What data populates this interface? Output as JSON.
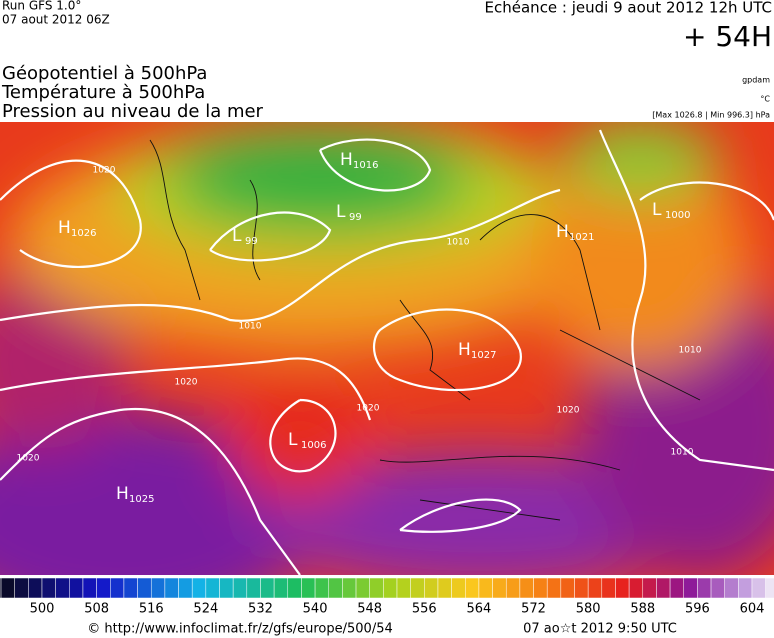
{
  "header": {
    "run": "Run GFS 1.0°",
    "run_time": "07 aout 2012 06Z",
    "echeance": "Echéance : jeudi 9 aout 2012 12h UTC",
    "lead": "+ 54H"
  },
  "titles": [
    "Géopotentiel à 500hPa",
    "Température à 500hPa",
    "Pression au niveau de la mer"
  ],
  "units": {
    "geopotential": "gpdam",
    "temperature": "°C",
    "pressure": "[Max 1026.8 | Min 996.3] hPa"
  },
  "map": {
    "centers": [
      {
        "kind": "H",
        "value": "1026"
      },
      {
        "kind": "L",
        "value": "99"
      },
      {
        "kind": "H",
        "value": "1016"
      },
      {
        "kind": "L",
        "value": "99"
      },
      {
        "kind": "H",
        "value": "1021"
      },
      {
        "kind": "L",
        "value": "1000"
      },
      {
        "kind": "H",
        "value": "1027"
      },
      {
        "kind": "L",
        "value": "1006"
      },
      {
        "kind": "H",
        "value": "1025"
      }
    ],
    "isobar_labels": [
      "1020",
      "1010",
      "1010",
      "1020",
      "1020",
      "1020",
      "1010",
      "1010",
      "1020"
    ]
  },
  "scale": {
    "ticks": [
      500,
      508,
      516,
      524,
      532,
      540,
      548,
      556,
      564,
      572,
      580,
      588,
      596,
      604
    ]
  },
  "footer": {
    "source": "© http://www.infoclimat.fr/z/gfs/europe/500/54",
    "generated": "07 ao☆t 2012  9:50 UTC"
  }
}
